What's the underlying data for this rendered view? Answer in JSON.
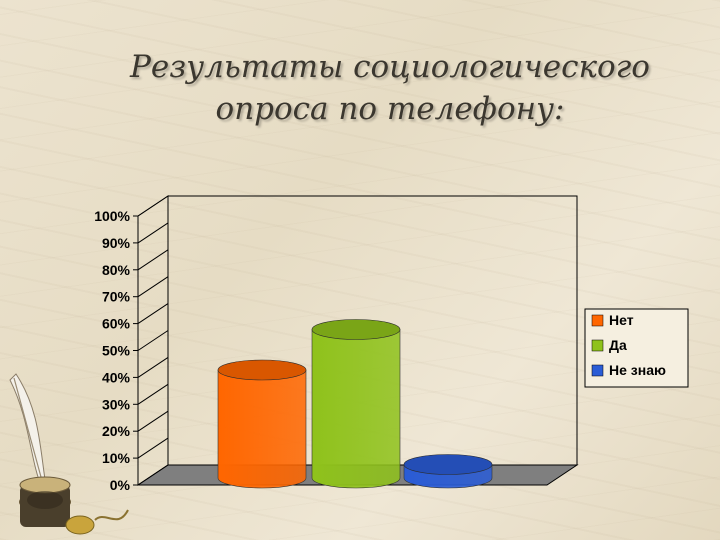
{
  "slide": {
    "title_line1": "Результаты социологического",
    "title_line2": "опроса по телефону:"
  },
  "chart_data": {
    "type": "bar",
    "style": "3d-cylinder",
    "categories": [
      ""
    ],
    "series": [
      {
        "name": "Нет",
        "values": [
          40
        ],
        "color": "#ff6600"
      },
      {
        "name": "Да",
        "values": [
          55
        ],
        "color": "#8fc21b"
      },
      {
        "name": "Не знаю",
        "values": [
          5
        ],
        "color": "#2a5cd6"
      }
    ],
    "yticks": [
      "0%",
      "10%",
      "20%",
      "30%",
      "40%",
      "50%",
      "60%",
      "70%",
      "80%",
      "90%",
      "100%"
    ],
    "ylim": [
      0,
      100
    ],
    "grid": false,
    "legend_position": "right"
  },
  "decoration": {
    "image": "quill-and-inkwell"
  }
}
